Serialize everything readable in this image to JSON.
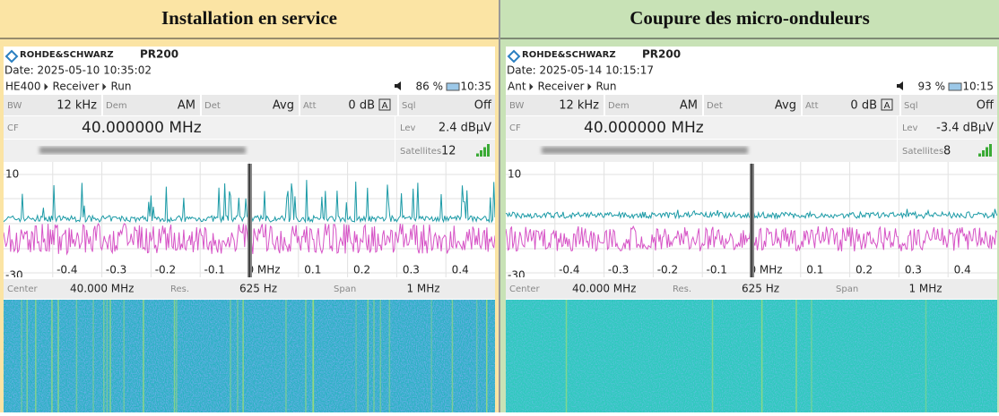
{
  "panels": [
    {
      "heading": "Installation en service",
      "brand": "ROHDE&SCHWARZ",
      "model": "PR200",
      "date": "Date: 2025-05-10 10:35:02",
      "path": [
        "HE400",
        "Receiver",
        "Run"
      ],
      "battery": "86 %",
      "time": "10:35",
      "settings": [
        {
          "label": "BW",
          "value": "12 kHz"
        },
        {
          "label": "Dem",
          "value": "AM"
        },
        {
          "label": "Det",
          "value": "Avg"
        },
        {
          "label": "Att",
          "value": "0 dB"
        },
        {
          "label": "Sql",
          "value": "Off"
        }
      ],
      "att_mode": "A",
      "cf_label": "CF",
      "cf": "40.000000 MHz",
      "lev_label": "Lev",
      "lev": "2.4 dBµV",
      "satellites_label": "Satellites",
      "satellites": "12",
      "y_labels": [
        "10",
        "-30"
      ],
      "x_labels": [
        "-0.4",
        "-0.3",
        "-0.2",
        "-0.1",
        "0 MHz",
        "0.1",
        "0.2",
        "0.3",
        "0.4"
      ],
      "footer": [
        {
          "label": "Center",
          "value": "40.000 MHz"
        },
        {
          "label": "Res.",
          "value": "625 Hz"
        },
        {
          "label": "Span",
          "value": "1 MHz"
        }
      ]
    },
    {
      "heading": "Coupure des micro-onduleurs",
      "brand": "ROHDE&SCHWARZ",
      "model": "PR200",
      "date": "Date: 2025-05-14 10:15:17",
      "path": [
        "Ant",
        "Receiver",
        "Run"
      ],
      "battery": "93 %",
      "time": "10:15",
      "settings": [
        {
          "label": "BW",
          "value": "12 kHz"
        },
        {
          "label": "Dem",
          "value": "AM"
        },
        {
          "label": "Det",
          "value": "Avg"
        },
        {
          "label": "Att",
          "value": "0 dB"
        },
        {
          "label": "Sql",
          "value": "Off"
        }
      ],
      "att_mode": "A",
      "cf_label": "CF",
      "cf": "40.000000 MHz",
      "lev_label": "Lev",
      "lev": "-3.4 dBµV",
      "satellites_label": "Satellites",
      "satellites": "8",
      "y_labels": [
        "10",
        "-30"
      ],
      "x_labels": [
        "-0.4",
        "-0.3",
        "-0.2",
        "-0.1",
        "0 MHz",
        "0.1",
        "0.2",
        "0.3",
        "0.4"
      ],
      "footer": [
        {
          "label": "Center",
          "value": "40.000 MHz"
        },
        {
          "label": "Res.",
          "value": "625 Hz"
        },
        {
          "label": "Span",
          "value": "1 MHz"
        }
      ]
    }
  ]
}
